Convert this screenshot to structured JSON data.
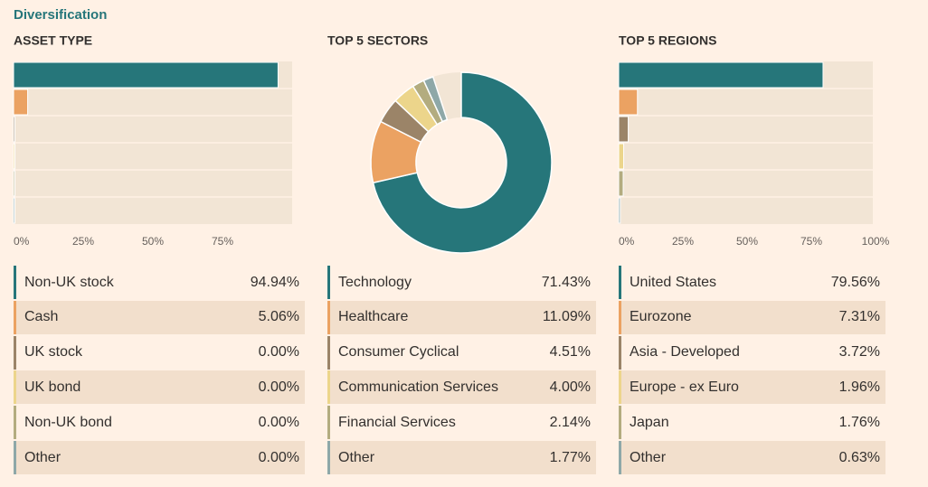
{
  "header": {
    "title": "Diversification"
  },
  "chart_data": [
    {
      "type": "bar",
      "title": "ASSET TYPE",
      "categories": [
        "Non-UK stock",
        "Cash",
        "UK stock",
        "UK bond",
        "Non-UK bond",
        "Other"
      ],
      "values": [
        94.94,
        5.06,
        0,
        0,
        0,
        0
      ],
      "value_labels": [
        "94.94%",
        "5.06%",
        "0.00%",
        "0.00%",
        "0.00%",
        "0.00%"
      ],
      "colors": [
        "#26767a",
        "#eba262",
        "#9b8468",
        "#ecd58b",
        "#b3ac7f",
        "#8ea8a8"
      ],
      "xlim": [
        0,
        100
      ],
      "xticks": [
        {
          "value": 0,
          "label": "0%"
        },
        {
          "value": 25,
          "label": "25%"
        },
        {
          "value": 50,
          "label": "50%"
        },
        {
          "value": 75,
          "label": "75%"
        }
      ]
    },
    {
      "type": "pie",
      "title": "TOP 5 SECTORS",
      "categories": [
        "Technology",
        "Healthcare",
        "Consumer Cyclical",
        "Communication Services",
        "Financial Services",
        "Other"
      ],
      "values": [
        71.43,
        11.09,
        4.51,
        4.0,
        2.14,
        1.77
      ],
      "value_labels": [
        "71.43%",
        "11.09%",
        "4.51%",
        "4.00%",
        "2.14%",
        "1.77%"
      ],
      "colors": [
        "#26767a",
        "#eba262",
        "#9b8468",
        "#ecd58b",
        "#b3ac7f",
        "#8ea8a8"
      ]
    },
    {
      "type": "bar",
      "title": "TOP 5 REGIONS",
      "categories": [
        "United States",
        "Eurozone",
        "Asia - Developed",
        "Europe - ex Euro",
        "Japan",
        "Other"
      ],
      "values": [
        79.56,
        7.31,
        3.72,
        1.96,
        1.76,
        0.63
      ],
      "value_labels": [
        "79.56%",
        "7.31%",
        "3.72%",
        "1.96%",
        "1.76%",
        "0.63%"
      ],
      "colors": [
        "#26767a",
        "#eba262",
        "#9b8468",
        "#ecd58b",
        "#b3ac7f",
        "#8ea8a8"
      ],
      "xlim": [
        0,
        100
      ],
      "xticks": [
        {
          "value": 0,
          "label": "0%"
        },
        {
          "value": 25,
          "label": "25%"
        },
        {
          "value": 50,
          "label": "50%"
        },
        {
          "value": 75,
          "label": "75%"
        },
        {
          "value": 100,
          "label": "100%"
        }
      ]
    }
  ]
}
